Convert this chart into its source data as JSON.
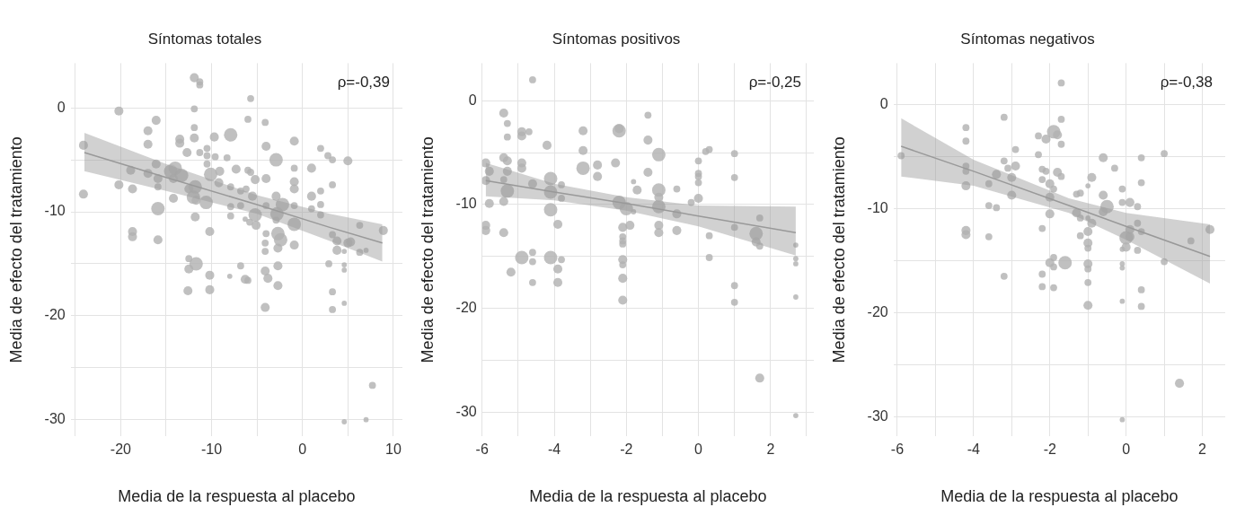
{
  "chart_data": [
    {
      "type": "bubble",
      "title": "Síntomas totales",
      "xlabel": "Media de la respuesta al placebo",
      "ylabel": "Media de efecto del tratamiento",
      "annotations": [
        "ρ=-0,39"
      ],
      "xlim": [
        -25.5,
        11
      ],
      "ylim": [
        -31.6,
        4.3
      ],
      "xticks": [
        {
          "value": -25,
          "label": null
        },
        -20,
        {
          "value": -15,
          "label": null
        },
        -10,
        {
          "value": -5,
          "label": null
        },
        0,
        {
          "value": 5,
          "label": null
        },
        10
      ],
      "yticks": [
        -30,
        {
          "value": -25,
          "label": null
        },
        -20,
        {
          "value": -15,
          "label": null
        },
        -10,
        {
          "value": -5,
          "label": null
        },
        0
      ],
      "grid": true,
      "series": [
        {
          "type": "bubble",
          "marker": "circle",
          "color": "#b0b0b0",
          "x": [
            -24.1,
            -24.1,
            -20.2,
            -20.2,
            -18.9,
            -18.7,
            -18.7,
            -18.7,
            -17.0,
            -17.0,
            -16.1,
            -16.1,
            -17.0,
            -15.9,
            -15.9,
            -15.9,
            -15.9,
            -13.5,
            -13.5,
            -12.7,
            -14.5,
            -14.0,
            -13.3,
            -14.2,
            -14.2,
            -12.5,
            -11.8,
            -12.0,
            -11.7,
            -10.6,
            -11.8,
            -11.9,
            -11.3,
            -11.3,
            -11.9,
            -11.9,
            -11.9,
            -11.3,
            -10.5,
            -10.5,
            -9.6,
            -10.5,
            -10.1,
            -9.1,
            -9.2,
            -9.7,
            -7.9,
            -8.3,
            -7.3,
            -7.9,
            -6.8,
            -6.2,
            -7.9,
            -7.9,
            -6.8,
            -10.2,
            -12.5,
            -12.5,
            -11.7,
            -10.2,
            -12.6,
            -10.2,
            -8.0,
            -6.8,
            -6.3,
            -6.0,
            -5.7,
            -6.0,
            -6.0,
            -5.7,
            -5.2,
            -5.5,
            -6.3,
            -5.8,
            -5.2,
            -5.1,
            -4.1,
            -4.0,
            -4.0,
            -4.0,
            -2.9,
            -2.9,
            -2.2,
            -2.8,
            -2.9,
            -4.0,
            -4.1,
            -4.1,
            -2.7,
            -2.4,
            -2.7,
            -2.7,
            -4.1,
            -3.8,
            -2.7,
            -4.1,
            -0.9,
            -0.9,
            -0.9,
            -0.9,
            -0.9,
            -0.9,
            -0.9,
            1.0,
            1.0,
            1.0,
            2.0,
            2.0,
            2.0,
            2.0,
            2.8,
            3.3,
            5.0,
            3.3,
            3.3,
            3.8,
            3.8,
            4.6,
            5.3,
            5.0,
            6.3,
            6.3,
            7.0,
            8.9,
            2.9,
            4.6,
            4.6,
            3.3,
            3.3,
            4.6,
            7.7,
            7.0,
            4.6
          ],
          "values": [
            -3.6,
            -8.3,
            -0.3,
            -7.4,
            -6.0,
            -7.8,
            -11.9,
            -12.4,
            -2.2,
            -3.5,
            -1.2,
            -5.4,
            -6.3,
            -6.8,
            -7.6,
            -9.7,
            -12.7,
            -3.0,
            -3.4,
            -4.3,
            -6.1,
            -5.8,
            -6.5,
            -6.8,
            -8.7,
            -7.8,
            -7.6,
            -8.6,
            -8.9,
            -9.1,
            -10.5,
            2.9,
            2.5,
            2.2,
            -0.1,
            -1.9,
            -2.9,
            -4.3,
            -3.9,
            -4.6,
            -4.7,
            -5.4,
            -6.4,
            -6.1,
            -7.2,
            -2.8,
            -2.6,
            -4.8,
            -5.9,
            -7.6,
            -8.0,
            -7.8,
            -9.5,
            -10.4,
            -9.4,
            -11.9,
            -14.5,
            -15.5,
            -15.0,
            -16.1,
            -17.6,
            -17.5,
            -16.2,
            -15.2,
            -16.5,
            -16.6,
            0.9,
            -1.1,
            -6.0,
            -6.2,
            -6.9,
            -8.5,
            -10.7,
            -11.0,
            -10.3,
            -11.3,
            -1.4,
            -3.7,
            -6.8,
            -9.4,
            -5.0,
            -8.5,
            -9.3,
            -10.2,
            -10.8,
            -12.1,
            -13.0,
            -13.8,
            -12.1,
            -12.7,
            -13.5,
            -15.2,
            -15.7,
            -16.4,
            -17.1,
            -19.2,
            -3.2,
            -5.8,
            -7.1,
            -7.8,
            -9.4,
            -11.2,
            -13.2,
            -5.8,
            -8.5,
            -9.7,
            -3.9,
            -8.0,
            -9.3,
            -10.3,
            -4.6,
            -5.0,
            -5.1,
            -7.4,
            -12.2,
            -12.8,
            -13.7,
            -13.8,
            -12.9,
            -13.0,
            -11.3,
            -13.9,
            -13.7,
            -11.8,
            -15.0,
            -15.1,
            -15.6,
            -17.7,
            -19.4,
            -18.8,
            -26.7,
            -30.0,
            -30.2
          ],
          "sizes": [
            0.45,
            0.45,
            0.45,
            0.45,
            0.45,
            0.45,
            0.45,
            0.45,
            0.45,
            0.45,
            0.45,
            0.45,
            0.45,
            0.45,
            0.27,
            1,
            0.45,
            0.45,
            0.45,
            0.45,
            1,
            1,
            1,
            0.45,
            0.45,
            0.45,
            1,
            1,
            0.45,
            1,
            0.45,
            0.45,
            0.27,
            0.27,
            0.27,
            0.27,
            0.45,
            0.27,
            0.27,
            0.27,
            0.27,
            0.27,
            1,
            0.45,
            0.45,
            0.45,
            1,
            0.27,
            0.45,
            0.27,
            0.27,
            0.27,
            0.27,
            0.27,
            0.27,
            0.45,
            0.27,
            0.45,
            1,
            0.45,
            0.45,
            0.45,
            0.15,
            0.27,
            0.45,
            0.27,
            0.27,
            0.27,
            0.27,
            0.27,
            0.45,
            0.45,
            0.15,
            0.27,
            1,
            0.45,
            0.27,
            0.45,
            0.45,
            0.27,
            1,
            0.45,
            1,
            1,
            0.27,
            0.27,
            0.27,
            0.27,
            1,
            1,
            0.45,
            0.45,
            0.45,
            0.45,
            0.45,
            0.45,
            0.45,
            0.27,
            0.45,
            0.45,
            0.27,
            1,
            0.45,
            0.45,
            0.45,
            0.27,
            0.27,
            0.27,
            0.27,
            0.27,
            0.27,
            0.27,
            0.45,
            0.27,
            0.27,
            0.45,
            0.45,
            0.15,
            0.45,
            0.45,
            0.27,
            0.27,
            0.15,
            0.45,
            0.27,
            0.15,
            0.15,
            0.27,
            0.27,
            0.15,
            0.27,
            0.15,
            0.15
          ]
        },
        {
          "type": "line",
          "color": "#999999",
          "x": [
            -24.0,
            -15,
            -5,
            3,
            8.8
          ],
          "values": [
            -4.3,
            -6.7,
            -9.3,
            -11.5,
            -13.0
          ],
          "lower": [
            -6.1,
            -8.0,
            -10.2,
            -12.8,
            -14.8
          ],
          "upper": [
            -2.4,
            -5.4,
            -8.4,
            -10.2,
            -11.2
          ]
        }
      ]
    },
    {
      "type": "bubble",
      "title": "Síntomas positivos",
      "xlabel": "Media de la respuesta al placebo",
      "ylabel": "Media de efecto del tratamiento",
      "annotations": [
        "ρ=-0,25"
      ],
      "xlim": [
        -6.0,
        3.2
      ],
      "ylim": [
        -32.3,
        3.6
      ],
      "xticks": [
        -6,
        {
          "value": -5,
          "label": null
        },
        -4,
        {
          "value": -3,
          "label": null
        },
        -2,
        {
          "value": -1,
          "label": null
        },
        0,
        {
          "value": 1,
          "label": null
        },
        2,
        {
          "value": 3,
          "label": null
        }
      ],
      "yticks": [
        -30,
        {
          "value": -25,
          "label": null
        },
        -20,
        {
          "value": -15,
          "label": null
        },
        -10,
        {
          "value": -5,
          "label": null
        },
        0
      ],
      "grid": true,
      "series": [
        {
          "type": "bubble",
          "marker": "circle",
          "color": "#b0b0b0",
          "x": [
            -4.6,
            -5.4,
            -5.3,
            -5.3,
            -4.9,
            -4.9,
            -4.7,
            -5.9,
            -5.8,
            -5.9,
            -5.8,
            -5.9,
            -5.9,
            -5.4,
            -5.3,
            -5.3,
            -5.4,
            -5.3,
            -5.4,
            -5.4,
            -4.9,
            -4.9,
            -4.6,
            -5.2,
            -4.9,
            -4.6,
            -4.6,
            -4.6,
            -4.2,
            -4.1,
            -4.1,
            -4.1,
            -3.8,
            -3.8,
            -3.9,
            -4.1,
            -3.8,
            -3.9,
            -3.9,
            -3.2,
            -3.2,
            -3.2,
            -2.8,
            -2.8,
            -2.3,
            -2.2,
            -2.2,
            -2.2,
            -2.0,
            -1.8,
            -2.1,
            -1.9,
            -2.1,
            -2.1,
            -2.1,
            -2.1,
            -2.1,
            -2.1,
            -2.1,
            -1.8,
            -1.7,
            -1.4,
            -1.4,
            -1.4,
            -1.1,
            -1.1,
            -1.1,
            -1.1,
            -1.1,
            -1.1,
            -0.6,
            -0.6,
            -0.6,
            -0.2,
            0.0,
            0.0,
            0.0,
            0.0,
            0.0,
            0.2,
            0.3,
            0.3,
            0.3,
            1.0,
            1.0,
            1.0,
            1.0,
            1.0,
            1.7,
            1.6,
            1.6,
            1.7,
            1.7,
            2.7,
            2.7,
            2.7,
            2.7,
            2.7
          ],
          "values": [
            2.0,
            -1.2,
            -2.2,
            -3.5,
            -3.0,
            -3.4,
            -3.0,
            -6.0,
            -6.8,
            -7.7,
            -9.9,
            -12.0,
            -12.5,
            -5.5,
            -5.8,
            -6.8,
            -7.6,
            -8.7,
            -9.7,
            -12.7,
            -6.0,
            -6.5,
            -8.0,
            -16.5,
            -15.1,
            -14.6,
            -15.5,
            -17.5,
            -4.3,
            -7.5,
            -8.8,
            -10.5,
            -8.1,
            -9.4,
            -11.9,
            -15.1,
            -15.3,
            -16.2,
            -17.5,
            -2.9,
            -4.8,
            -6.5,
            -6.2,
            -7.3,
            -6.0,
            -2.9,
            -2.7,
            -9.8,
            -10.4,
            -10.7,
            -12.2,
            -12.0,
            -13.1,
            -13.5,
            -13.8,
            -15.3,
            -15.8,
            -17.1,
            -19.2,
            -7.8,
            -8.6,
            -1.4,
            -3.8,
            -6.9,
            -5.2,
            -8.6,
            -9.3,
            -10.2,
            -12.0,
            -12.7,
            -8.5,
            -10.9,
            -12.5,
            -9.8,
            -5.8,
            -7.0,
            -7.3,
            -7.9,
            -9.4,
            -4.9,
            -4.7,
            -13.0,
            -15.1,
            -5.1,
            -7.4,
            -12.2,
            -17.8,
            -19.4,
            -11.3,
            -12.8,
            -13.6,
            -14.0,
            -26.7,
            -13.9,
            -15.2,
            -15.7,
            -18.9,
            -30.3
          ],
          "sizes": [
            0.27,
            0.45,
            0.27,
            0.27,
            0.45,
            0.45,
            0.27,
            0.45,
            0.45,
            0.45,
            0.45,
            0.45,
            0.45,
            0.45,
            0.45,
            0.45,
            0.27,
            1,
            0.45,
            0.45,
            0.45,
            0.45,
            0.45,
            0.45,
            1,
            0.27,
            0.27,
            0.27,
            0.45,
            1,
            1,
            1,
            0.27,
            0.27,
            0.45,
            1,
            0.27,
            0.45,
            0.45,
            0.45,
            0.45,
            1,
            0.45,
            0.45,
            0.45,
            1,
            0.45,
            1,
            1,
            0.15,
            0.45,
            0.45,
            0.27,
            0.27,
            0.27,
            0.45,
            0.27,
            0.45,
            0.45,
            0.15,
            0.45,
            0.27,
            0.45,
            0.45,
            1,
            1,
            0.45,
            1,
            0.45,
            0.45,
            0.27,
            0.45,
            0.45,
            0.27,
            0.27,
            0.27,
            0.27,
            0.27,
            0.45,
            0.27,
            0.27,
            0.27,
            0.27,
            0.27,
            0.27,
            0.27,
            0.27,
            0.27,
            0.27,
            1,
            0.45,
            0.27,
            0.45,
            0.15,
            0.15,
            0.15,
            0.15,
            0.15
          ]
        },
        {
          "type": "line",
          "color": "#999999",
          "x": [
            -5.9,
            -4,
            -2,
            0,
            2.7
          ],
          "values": [
            -7.7,
            -8.8,
            -9.9,
            -11.1,
            -12.7
          ],
          "lower": [
            -9.2,
            -9.6,
            -10.6,
            -12.1,
            -14.9
          ],
          "upper": [
            -6.0,
            -8.0,
            -9.3,
            -10.1,
            -10.2
          ]
        }
      ]
    },
    {
      "type": "bubble",
      "title": "Síntomas negativos",
      "xlabel": "Media de la respuesta al placebo",
      "ylabel": "Media de efecto del tratamiento",
      "annotations": [
        "ρ=-0,38"
      ],
      "xlim": [
        -6.1,
        2.6
      ],
      "ylim": [
        -31.9,
        4.0
      ],
      "xticks": [
        -6,
        {
          "value": -5,
          "label": null
        },
        -4,
        {
          "value": -3,
          "label": null
        },
        -2,
        {
          "value": -1,
          "label": null
        },
        0,
        {
          "value": 1,
          "label": null
        },
        2
      ],
      "yticks": [
        -30,
        {
          "value": -25,
          "label": null
        },
        -20,
        {
          "value": -15,
          "label": null
        },
        -10,
        {
          "value": -5,
          "label": null
        },
        0
      ],
      "grid": true,
      "series": [
        {
          "type": "bubble",
          "marker": "circle",
          "color": "#b0b0b0",
          "x": [
            -5.9,
            -4.2,
            -4.2,
            -4.2,
            -4.2,
            -4.2,
            -4.2,
            -4.2,
            -3.6,
            -3.6,
            -3.4,
            -3.6,
            -3.4,
            -3.2,
            -3.2,
            -3.1,
            -2.9,
            -3.0,
            -3.0,
            -2.9,
            -3.2,
            -2.3,
            -2.1,
            -1.9,
            -1.8,
            -1.7,
            -1.7,
            -1.7,
            -2.3,
            -2.2,
            -2.1,
            -1.8,
            -1.7,
            -2.2,
            -2.0,
            -1.9,
            -2.0,
            -2.0,
            -2.2,
            -1.9,
            -2.0,
            -1.9,
            -1.6,
            -2.2,
            -2.2,
            -1.9,
            -1.3,
            -1.2,
            -0.9,
            -1.0,
            -1.3,
            -1.2,
            -1.0,
            -0.9,
            -1.2,
            -1.0,
            -1.0,
            -1.0,
            -1.0,
            -1.0,
            -1.0,
            -1.0,
            -0.6,
            -0.3,
            -0.6,
            -0.5,
            -0.6,
            -0.1,
            -0.1,
            0.1,
            0.3,
            0.1,
            0.0,
            0.1,
            0.0,
            -0.1,
            -0.1,
            -0.1,
            -0.1,
            -0.1,
            0.3,
            0.4,
            0.4,
            0.4,
            0.3,
            0.4,
            0.4,
            1.0,
            1.0,
            1.7,
            2.2,
            1.4
          ],
          "values": [
            -4.9,
            -2.2,
            -3.5,
            -5.9,
            -6.4,
            -7.8,
            -12.1,
            -12.5,
            -7.6,
            -9.7,
            -9.9,
            -12.7,
            -6.7,
            -1.2,
            -5.4,
            -6.1,
            -5.9,
            -7.0,
            -8.7,
            -4.3,
            -16.5,
            -3.0,
            -3.3,
            -2.6,
            -2.9,
            -1.4,
            2.1,
            -3.8,
            -4.8,
            -6.2,
            -6.4,
            -6.5,
            -6.9,
            -7.2,
            -7.6,
            -8.1,
            -8.9,
            -10.5,
            -11.9,
            -14.7,
            -15.2,
            -15.6,
            -15.2,
            -16.3,
            -17.5,
            -17.6,
            -8.6,
            -8.5,
            -7.0,
            -7.8,
            -10.4,
            -10.9,
            -10.9,
            -11.4,
            -12.6,
            -12.2,
            -13.3,
            -13.8,
            -15.3,
            -15.8,
            -17.1,
            -19.3,
            -5.1,
            -6.1,
            -8.7,
            -9.8,
            -10.3,
            -8.1,
            -9.4,
            -9.4,
            -9.8,
            -12.0,
            -12.8,
            -12.7,
            -13.7,
            -13.9,
            -15.3,
            -15.7,
            -18.9,
            -30.3,
            -11.4,
            -5.1,
            -7.5,
            -12.2,
            -14.0,
            -17.8,
            -19.4,
            -4.7,
            -15.1,
            -13.1,
            -12.0,
            -26.8
          ],
          "sizes": [
            0.27,
            0.27,
            0.27,
            0.27,
            0.27,
            0.45,
            0.45,
            0.45,
            0.27,
            0.27,
            0.27,
            0.27,
            0.45,
            0.27,
            0.27,
            0.27,
            0.45,
            0.45,
            0.45,
            0.27,
            0.27,
            0.27,
            0.45,
            1,
            0.45,
            0.27,
            0.27,
            0.27,
            0.27,
            0.27,
            0.27,
            0.45,
            0.27,
            0.27,
            0.45,
            0.27,
            0.45,
            0.45,
            0.27,
            0.27,
            0.45,
            0.27,
            1,
            0.27,
            0.27,
            0.27,
            0.27,
            0.27,
            0.45,
            0.15,
            0.45,
            0.27,
            0.15,
            0.45,
            0.27,
            0.45,
            0.45,
            0.27,
            0.45,
            0.27,
            0.27,
            0.45,
            0.45,
            0.27,
            0.45,
            1,
            0.45,
            0.27,
            0.27,
            0.45,
            0.27,
            0.45,
            1,
            0.45,
            0.45,
            0.15,
            0.15,
            0.15,
            0.15,
            0.15,
            0.27,
            0.27,
            0.27,
            0.27,
            0.27,
            0.27,
            0.27,
            0.27,
            0.27,
            0.27,
            0.45,
            0.45
          ]
        },
        {
          "type": "line",
          "color": "#999999",
          "x": [
            -5.9,
            -4,
            -1.5,
            0,
            2.2
          ],
          "values": [
            -4.0,
            -6.4,
            -9.7,
            -11.7,
            -14.6
          ],
          "lower": [
            -6.9,
            -7.8,
            -10.4,
            -13.0,
            -17.2
          ],
          "upper": [
            -1.3,
            -5.3,
            -9.0,
            -10.4,
            -11.5
          ]
        }
      ]
    }
  ]
}
